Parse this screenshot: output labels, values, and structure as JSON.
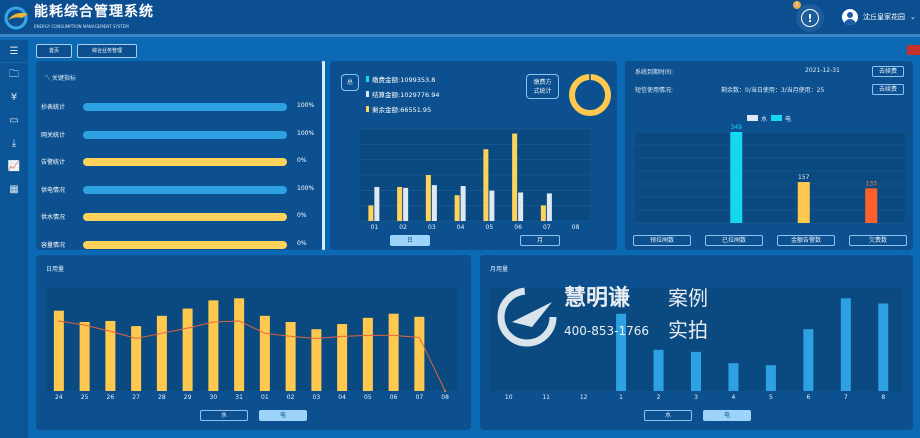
{
  "app": {
    "title": "能耗综合管理系统",
    "subtitle": "ENERGY CONSUMPTION MANAGEMENT SYSTEM",
    "alert_count": "1",
    "user": "沈丘皇家花园"
  },
  "sidebar": {
    "icons": [
      "menu-icon",
      "folder-icon",
      "yuan-icon",
      "monitor-icon",
      "download-folder-icon",
      "line-chart-icon",
      "report-icon"
    ]
  },
  "breadcrumb": [
    "首页",
    "综合业务管理"
  ],
  "kpi": {
    "title": "关键指标",
    "items": [
      {
        "label": "抄表统计",
        "value": "100%",
        "percent": 100,
        "color": "#2ea1e3"
      },
      {
        "label": "网关统计",
        "value": "100%",
        "percent": 100,
        "color": "#2ea1e3"
      },
      {
        "label": "告警统计",
        "value": "0%",
        "percent": 0,
        "color": "#ffd25c"
      },
      {
        "label": "供电情况",
        "value": "100%",
        "percent": 100,
        "color": "#2ea1e3"
      },
      {
        "label": "供水情况",
        "value": "0%",
        "percent": 0,
        "color": "#ffd25c"
      },
      {
        "label": "容量情况",
        "value": "0%",
        "percent": 0,
        "color": "#ffd25c"
      }
    ]
  },
  "payment": {
    "total_tag": "总",
    "lines": [
      "缴费金额:1099353.8",
      "结算金额:1029776.94",
      "剩余金额:66551.95"
    ],
    "line_colors": [
      "#14d8f0",
      "#dfe9f5",
      "#ffd25c"
    ],
    "method_label": "缴费方式统计",
    "method_label_lines": [
      "缴费方",
      "式统计"
    ],
    "buttons": [
      "日",
      "月"
    ],
    "active": "日"
  },
  "account": {
    "expire_label": "系统到期时间:",
    "expire_value": "2021-12-31",
    "sms_label": "短信使用情况:",
    "sms_value": "剩余数：0/当日使用：3/当月使用：25",
    "renew": "去续费",
    "legend": [
      "水",
      "电"
    ],
    "buttons": [
      "预拉闸数",
      "已拉闸数",
      "金额告警数",
      "欠费数"
    ]
  },
  "daily": {
    "title": "日用量",
    "buttons": [
      "水",
      "电"
    ],
    "active": "电"
  },
  "monthly": {
    "title": "月用量",
    "buttons": [
      "水",
      "电"
    ],
    "active": "电"
  },
  "watermark": {
    "brand": "慧明谦",
    "tag1": "案例",
    "tag2": "实拍",
    "phone": "400-853-1766"
  },
  "chart_data": [
    {
      "id": "payment",
      "type": "bar",
      "categories": [
        "01",
        "02",
        "03",
        "04",
        "05",
        "06",
        "07",
        "08"
      ],
      "series": [
        {
          "values": [
            17,
            37,
            50,
            28,
            78,
            95,
            17,
            0
          ],
          "color": "#ffd25c"
        },
        {
          "values": [
            37,
            36,
            39,
            38,
            33,
            31,
            30,
            0
          ],
          "color": "#dfe9f5"
        }
      ],
      "ylim": [
        0,
        100
      ],
      "grid": true
    },
    {
      "id": "account",
      "type": "bar",
      "categories": [
        "预拉闸数",
        "已拉闸数",
        "金额告警数",
        "欠费数"
      ],
      "values": [
        null,
        349,
        157,
        133
      ],
      "colors": [
        "#14d8f0",
        "#14d8f0",
        "#ffc84f",
        "#ff5f2a"
      ],
      "legend": [
        "水",
        "电"
      ],
      "legend_placement": "top",
      "grid": true
    },
    {
      "id": "daily",
      "type": "bar",
      "categories": [
        "24",
        "25",
        "26",
        "27",
        "28",
        "29",
        "30",
        "31",
        "01",
        "02",
        "03",
        "04",
        "05",
        "06",
        "07",
        "08"
      ],
      "series": [
        {
          "type": "bar",
          "values": [
            78,
            67,
            68,
            63,
            73,
            80,
            88,
            90,
            73,
            67,
            60,
            65,
            71,
            75,
            72,
            0
          ],
          "color": "#ffc84f"
        },
        {
          "type": "line",
          "values": [
            68,
            64,
            58,
            51,
            56,
            61,
            67,
            68,
            56,
            53,
            51,
            53,
            54,
            54,
            52,
            0
          ],
          "color": "#e0643a"
        }
      ],
      "ylim": [
        0,
        100
      ]
    },
    {
      "id": "monthly",
      "type": "bar",
      "categories": [
        "10",
        "11",
        "12",
        "1",
        "2",
        "3",
        "4",
        "5",
        "6",
        "7",
        "8"
      ],
      "values": [
        0,
        0,
        0,
        75,
        40,
        38,
        27,
        25,
        60,
        90,
        85
      ],
      "color": "#2ea1e3",
      "ylim": [
        0,
        100
      ]
    }
  ]
}
